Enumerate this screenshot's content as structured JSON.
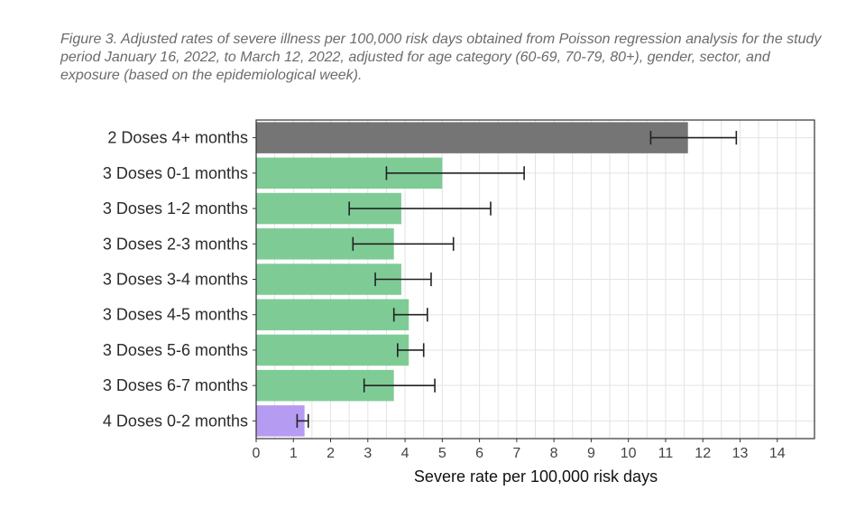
{
  "caption": "Figure 3.  Adjusted rates of severe illness per 100,000 risk days obtained from Poisson regression analysis for the study period January 16, 2022, to March 12, 2022, adjusted for age category (60-69, 70-79, 80+), gender, sector, and exposure (based on the epidemiological week).",
  "chart_data": {
    "type": "bar",
    "orientation": "horizontal",
    "title": "Figure 3.  Adjusted rates of severe illness per 100,000 risk days obtained from Poisson regression analysis for the study period January 16, 2022, to March 12, 2022, adjusted for age category (60-69, 70-79, 80+), gender, sector, and exposure (based on the epidemiological week).",
    "xlabel": "Severe rate per 100,000 risk days",
    "ylabel": "",
    "xlim": [
      0,
      15
    ],
    "xticks": [
      0,
      1,
      2,
      3,
      4,
      5,
      6,
      7,
      8,
      9,
      10,
      11,
      12,
      13,
      14
    ],
    "grid": true,
    "legend": "none",
    "categories": [
      "2 Doses 4+ months",
      "3 Doses 0-1 months",
      "3 Doses 1-2 months",
      "3 Doses 2-3 months",
      "3 Doses 3-4 months",
      "3 Doses 4-5 months",
      "3 Doses 5-6 months",
      "3 Doses 6-7 months",
      "4 Doses 0-2 months"
    ],
    "values": [
      11.6,
      5.0,
      3.9,
      3.7,
      3.9,
      4.1,
      4.1,
      3.7,
      1.3
    ],
    "ci_low": [
      10.6,
      3.5,
      2.5,
      2.6,
      3.2,
      3.7,
      3.8,
      2.9,
      1.1
    ],
    "ci_high": [
      12.9,
      7.2,
      6.3,
      5.3,
      4.7,
      4.6,
      4.5,
      4.8,
      1.4
    ],
    "colors": [
      "#757575",
      "#7fcb96",
      "#7fcb96",
      "#7fcb96",
      "#7fcb96",
      "#7fcb96",
      "#7fcb96",
      "#7fcb96",
      "#b59cf2"
    ],
    "errorbar_color": "#222222",
    "grid_color": "#e3e3e3",
    "panel_border_color": "#333333"
  }
}
